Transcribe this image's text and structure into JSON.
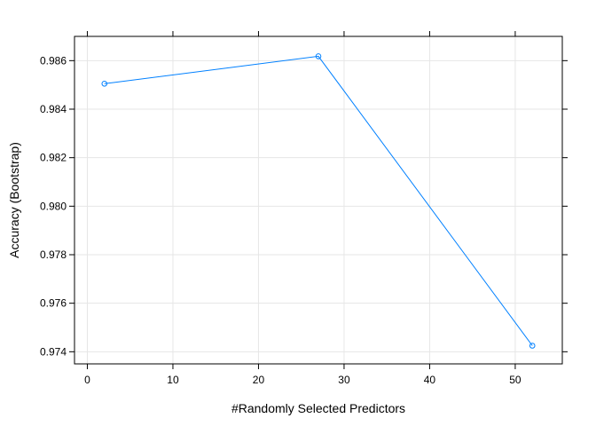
{
  "chart_data": {
    "type": "line",
    "title": "",
    "xlabel": "#Randomly Selected Predictors",
    "ylabel": "Accuracy (Bootstrap)",
    "xlim": [
      -1.5,
      55.5
    ],
    "ylim": [
      0.9735,
      0.987
    ],
    "x_ticks": [
      0,
      10,
      20,
      30,
      40,
      50
    ],
    "x_tick_labels": [
      "0",
      "10",
      "20",
      "30",
      "40",
      "50"
    ],
    "y_ticks": [
      0.974,
      0.976,
      0.978,
      0.98,
      0.982,
      0.984,
      0.986
    ],
    "y_tick_labels": [
      "0.974",
      "0.976",
      "0.978",
      "0.980",
      "0.982",
      "0.984",
      "0.986"
    ],
    "grid": true,
    "series": [
      {
        "color": "#0080ff",
        "x": [
          2,
          27,
          52
        ],
        "y": [
          0.98505,
          0.98618,
          0.97425
        ]
      }
    ]
  }
}
